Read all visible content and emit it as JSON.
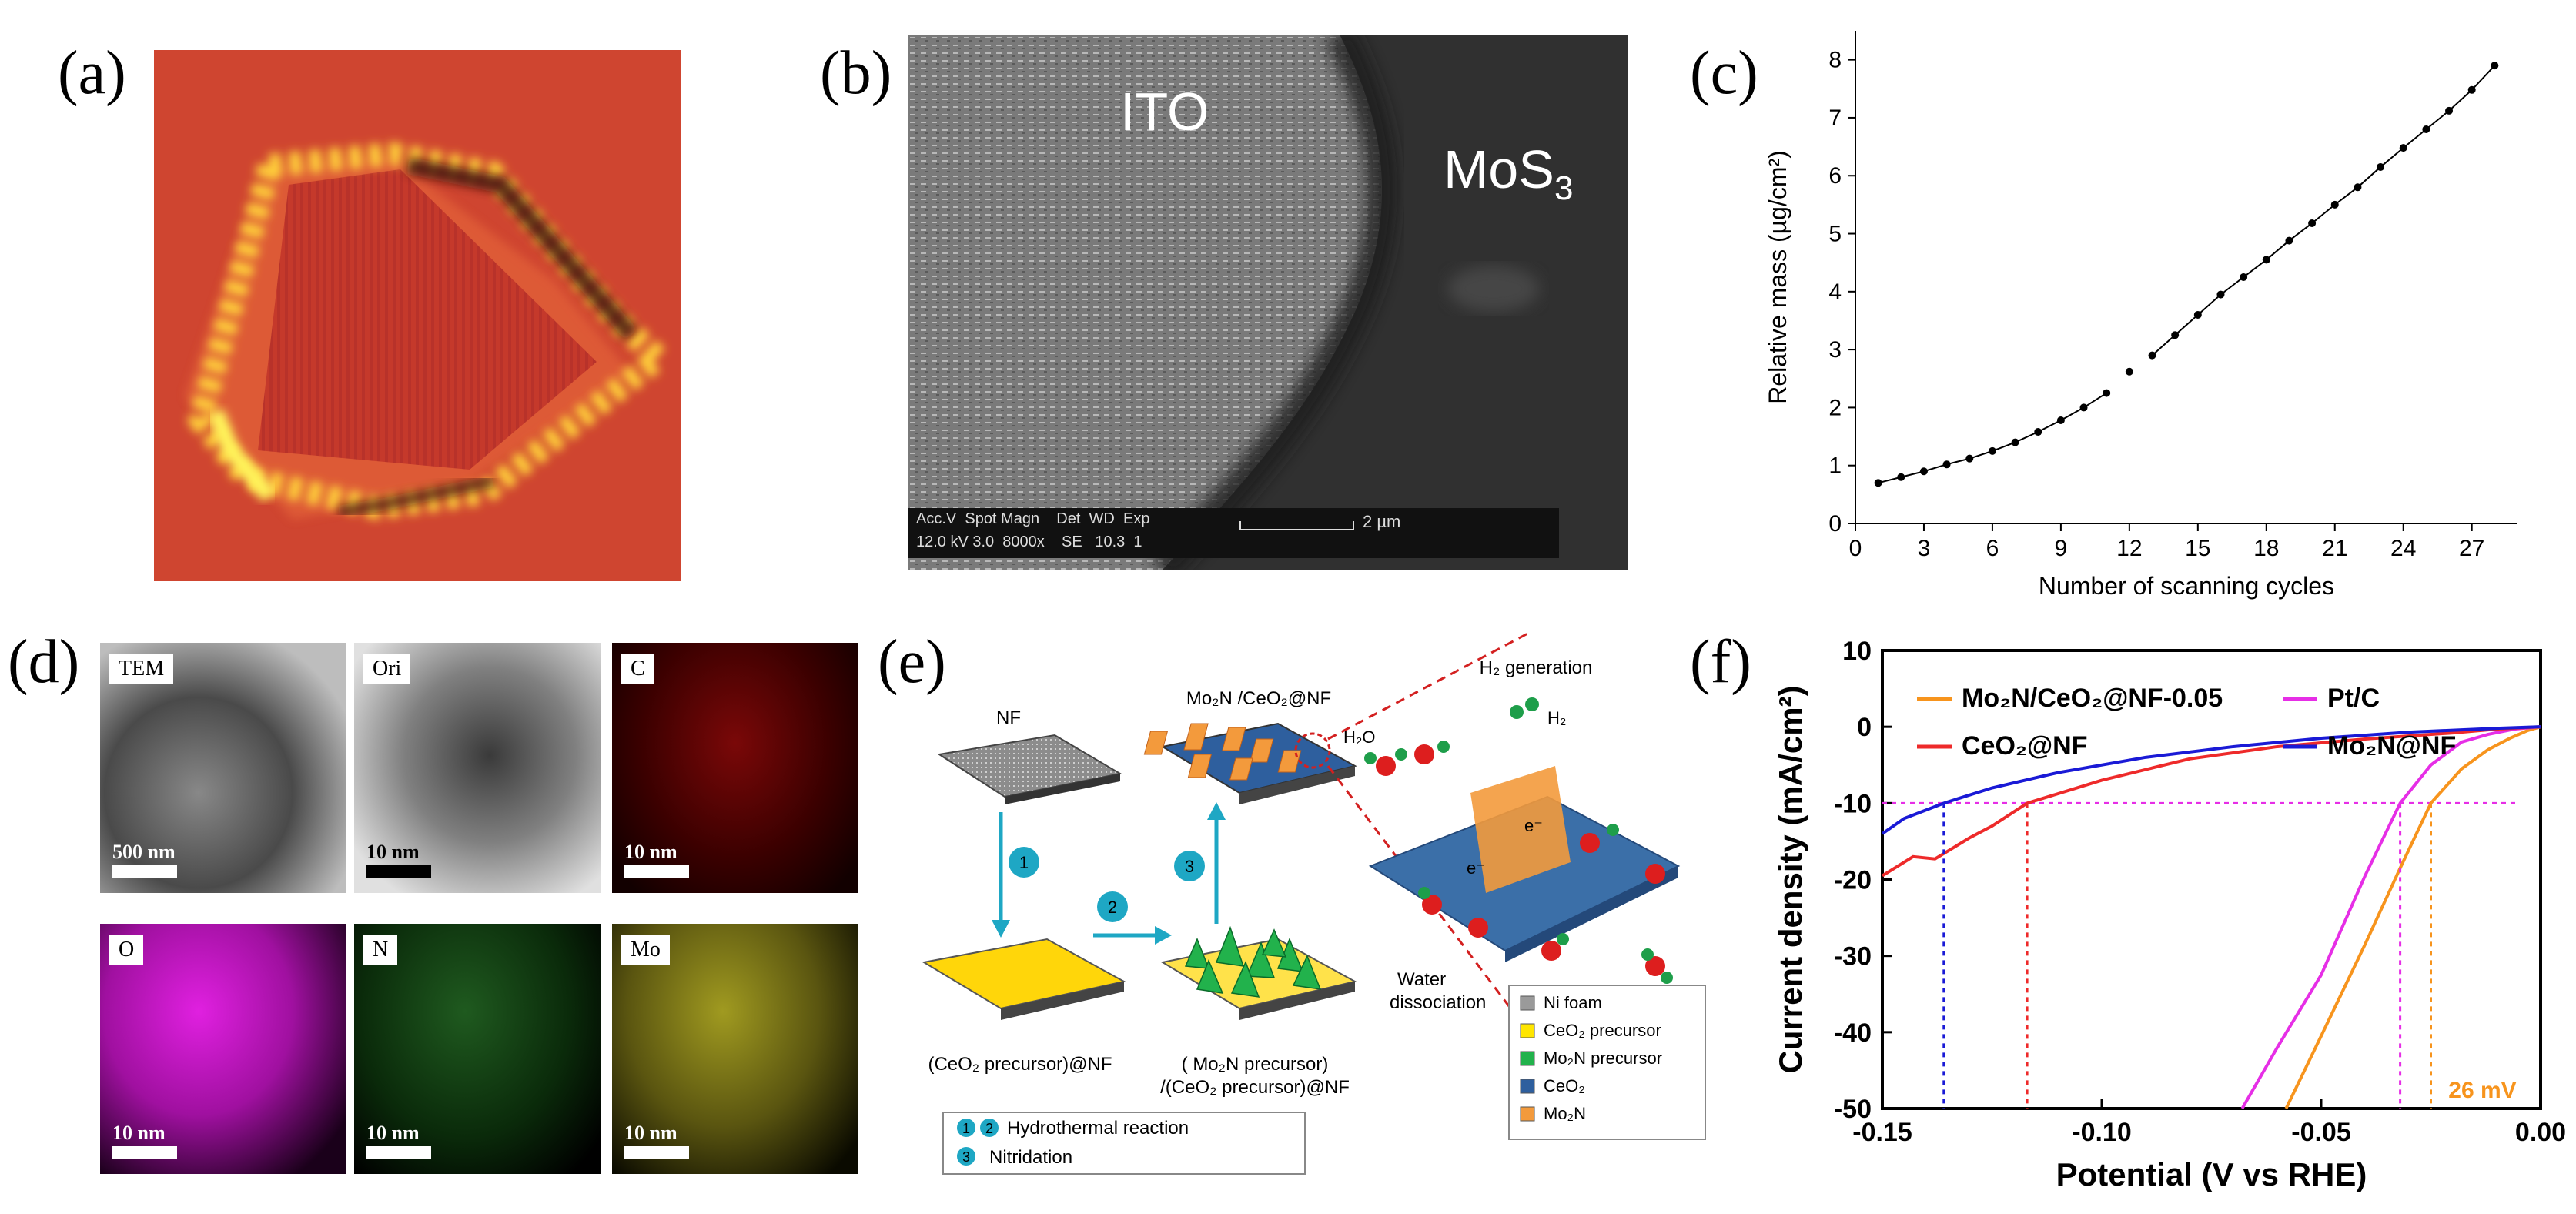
{
  "panels": {
    "a": {
      "label": "(a)"
    },
    "b": {
      "label": "(b)",
      "ito_label": "ITO",
      "mos3_label": "MoS",
      "mos3_sub": "3",
      "info_header": "Acc.V  Spot Magn    Det  WD  Exp",
      "info_values": "12.0 kV 3.0  8000x    SE   10.3  1",
      "scale": "2 µm"
    },
    "c": {
      "label": "(c)"
    },
    "d": {
      "label": "(d)",
      "maps": [
        {
          "name": "TEM",
          "scale": "500 nm"
        },
        {
          "name": "Ori",
          "scale": "10 nm"
        },
        {
          "name": "C",
          "scale": "10 nm"
        },
        {
          "name": "O",
          "scale": "10 nm"
        },
        {
          "name": "N",
          "scale": "10 nm"
        },
        {
          "name": "Mo",
          "scale": "10 nm"
        }
      ]
    },
    "e": {
      "label": "(e)",
      "nf": "NF",
      "product": "Mo₂N /CeO₂@NF",
      "ceo2_precursor": "(CeO₂ precursor)@NF",
      "mo2n_precursor_1": "( Mo₂N precursor)",
      "mo2n_precursor_2": "/(CeO₂ precursor)@NF",
      "h2_generation": "H₂ generation",
      "h2": "H₂",
      "h2o": "H₂O",
      "water_dissociation_1": "Water",
      "water_dissociation_2": "dissociation",
      "electron": "e⁻",
      "steps": [
        "1",
        "2",
        "3"
      ],
      "step_legend_1": "Hydrothermal reaction",
      "step_legend_2": "Nitridation",
      "legend": [
        {
          "label": "Ni foam",
          "color": "#9a9a9a"
        },
        {
          "label": "CeO₂ precursor",
          "color": "#ffe600"
        },
        {
          "label": "Mo₂N precursor",
          "color": "#22b24c"
        },
        {
          "label": "CeO₂",
          "color": "#2e5f9e"
        },
        {
          "label": "Mo₂N",
          "color": "#f39a3c"
        }
      ]
    },
    "f": {
      "label": "(f)",
      "annotation": "26 mV"
    }
  },
  "chart_data": [
    {
      "type": "scatter",
      "panel": "c",
      "xlabel": "Number of scanning cycles",
      "ylabel": "Relative mass (µg/cm²)",
      "xlim": [
        0,
        29
      ],
      "ylim": [
        0,
        8.5
      ],
      "xticks": [
        0,
        3,
        6,
        9,
        12,
        15,
        18,
        21,
        24,
        27
      ],
      "yticks": [
        0,
        1,
        2,
        3,
        4,
        5,
        6,
        7,
        8
      ],
      "series": [
        {
          "x": [
            1,
            2,
            3,
            4,
            5,
            6,
            7,
            8,
            9,
            10,
            11
          ],
          "y": [
            0.7,
            0.8,
            0.9,
            1.02,
            1.12,
            1.25,
            1.4,
            1.58,
            1.78,
            2.0,
            2.25
          ]
        },
        {
          "x": [
            12
          ],
          "y": [
            2.62
          ]
        },
        {
          "x": [
            13,
            14,
            15,
            16,
            17,
            18,
            19,
            20,
            21,
            22,
            23,
            24,
            25,
            26,
            27,
            28
          ],
          "y": [
            2.9,
            3.25,
            3.6,
            3.95,
            4.25,
            4.55,
            4.88,
            5.18,
            5.5,
            5.8,
            6.15,
            6.48,
            6.8,
            7.12,
            7.48,
            7.9
          ]
        }
      ]
    },
    {
      "type": "line",
      "panel": "f",
      "xlabel": "Potential (V vs RHE)",
      "ylabel": "Current density (mA/cm²)",
      "xlim": [
        -0.15,
        0.0
      ],
      "ylim": [
        -50,
        10
      ],
      "xticks": [
        -0.15,
        -0.1,
        -0.05,
        0.0
      ],
      "xtick_labels": [
        "-0.15",
        "-0.10",
        "-0.05",
        "0.00"
      ],
      "yticks": [
        10,
        0,
        -10,
        -20,
        -30,
        -40,
        -50
      ],
      "reference_y": -10,
      "series": [
        {
          "name": "Mo₂N/CeO₂@NF-0.05",
          "color": "#f7941d",
          "x": [
            -0.058,
            -0.05,
            -0.04,
            -0.032,
            -0.025,
            -0.018,
            -0.012,
            -0.007,
            -0.003,
            0.0
          ],
          "y": [
            -50,
            -40.5,
            -28.5,
            -18.5,
            -10,
            -5.5,
            -3,
            -1.5,
            -0.5,
            0
          ],
          "marker_x": -0.025
        },
        {
          "name": "Pt/C",
          "color": "#e62ee6",
          "x": [
            -0.068,
            -0.06,
            -0.05,
            -0.04,
            -0.032,
            -0.025,
            -0.018,
            -0.012,
            -0.006,
            0.0
          ],
          "y": [
            -50,
            -42,
            -32.5,
            -19.5,
            -10,
            -5,
            -2,
            -1,
            -0.3,
            0
          ],
          "marker_x": -0.032
        },
        {
          "name": "CeO₂@NF",
          "color": "#ee2a2a",
          "x": [
            -0.15,
            -0.143,
            -0.138,
            -0.13,
            -0.125,
            -0.117,
            -0.1,
            -0.08,
            -0.06,
            -0.04,
            -0.02,
            -0.01,
            0.0
          ],
          "y": [
            -19.5,
            -17,
            -17.3,
            -14.5,
            -13,
            -10,
            -7,
            -4.2,
            -2.6,
            -1.6,
            -0.8,
            -0.3,
            0
          ],
          "marker_x": -0.117
        },
        {
          "name": "Mo₂N@NF",
          "color": "#1a1ad6",
          "x": [
            -0.15,
            -0.145,
            -0.136,
            -0.125,
            -0.11,
            -0.09,
            -0.07,
            -0.05,
            -0.03,
            -0.01,
            0.0
          ],
          "y": [
            -14,
            -12,
            -10,
            -8,
            -6,
            -4,
            -2.6,
            -1.5,
            -0.7,
            -0.2,
            0
          ],
          "marker_x": -0.136
        }
      ]
    }
  ]
}
